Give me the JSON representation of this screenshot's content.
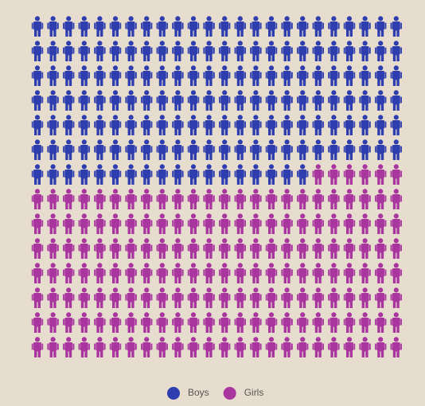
{
  "chart_data": {
    "type": "pictogram",
    "series": [
      {
        "name": "Boys",
        "color": "#2f3eae",
        "values": [
          162
        ]
      },
      {
        "name": "Girls",
        "color": "#a9359f",
        "values": [
          174
        ]
      }
    ]
  }
}
